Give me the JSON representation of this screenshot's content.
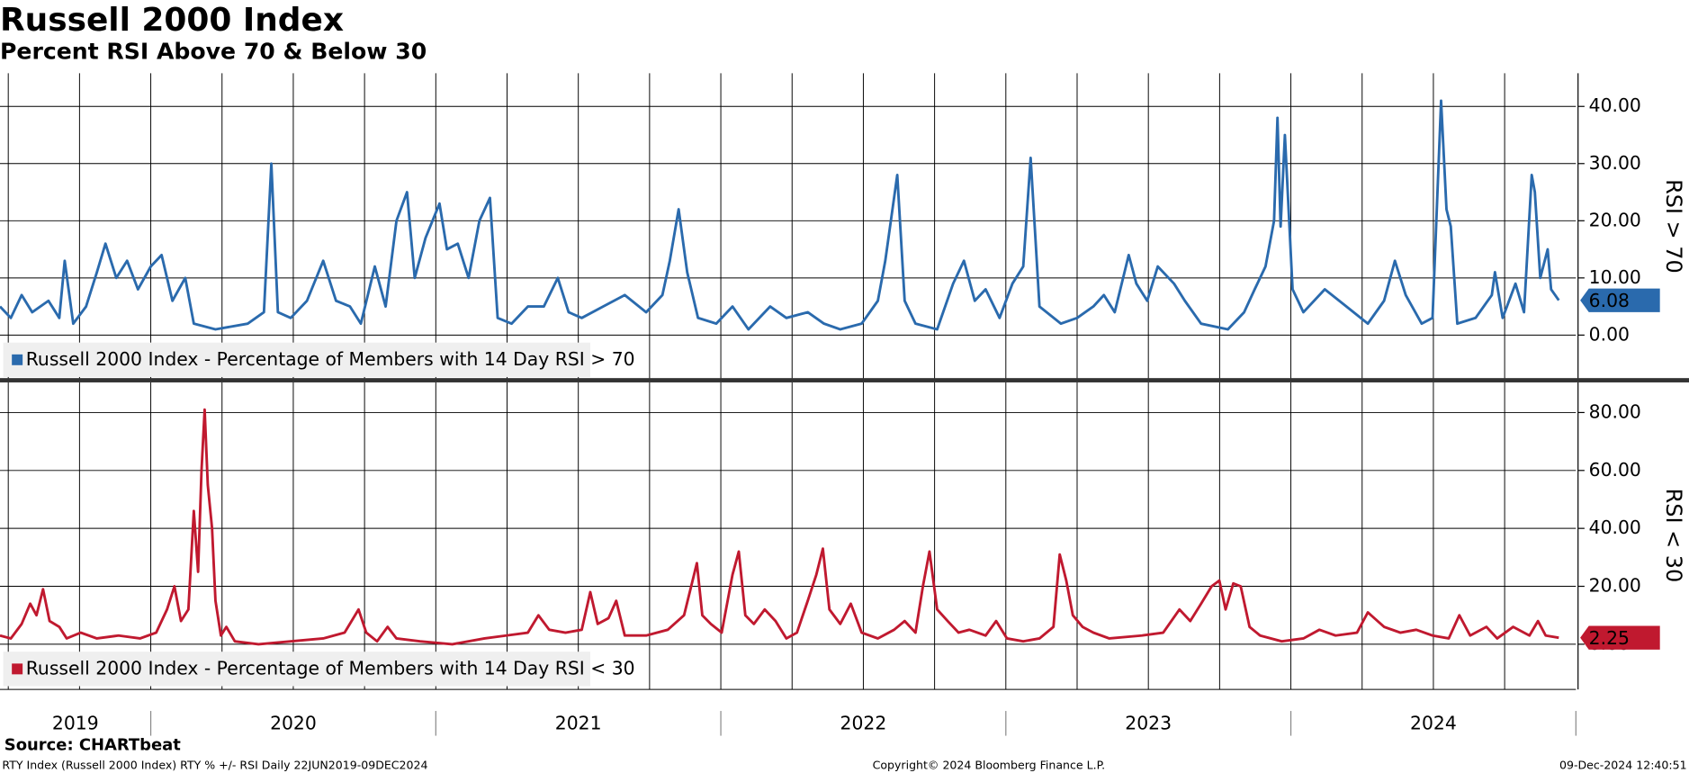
{
  "header": {
    "title": "Russell 2000 Index",
    "subtitle": "Percent RSI Above 70 & Below 30"
  },
  "footer": {
    "source": "Source: CHARTbeat",
    "description": "RTY Index (Russell 2000 Index) RTY % +/- RSI  Daily 22JUN2019-09DEC2024",
    "copyright": "Copyright© 2024 Bloomberg Finance L.P.",
    "timestamp": "09-Dec-2024 12:40:51"
  },
  "x_axis": {
    "years": [
      2019,
      2020,
      2021,
      2022,
      2023,
      2024
    ]
  },
  "chart_data": [
    {
      "type": "line",
      "y_axis_label": "RSI > 70",
      "xlim": [
        2019.471,
        2025.0
      ],
      "ylim": [
        -7.9,
        45.8
      ],
      "xgrid": [
        2019.5,
        2019.75,
        2020.0,
        2020.25,
        2020.5,
        2020.75,
        2021.0,
        2021.25,
        2021.5,
        2021.75,
        2022.0,
        2022.25,
        2022.5,
        2022.75,
        2023.0,
        2023.25,
        2023.5,
        2023.75,
        2024.0,
        2024.25,
        2024.5,
        2024.75
      ],
      "yticks": [
        {
          "value": 0,
          "label": "0.00"
        },
        {
          "value": 10,
          "label": "10.00"
        },
        {
          "value": 20,
          "label": "20.00"
        },
        {
          "value": 30,
          "label": "30.00"
        },
        {
          "value": 40,
          "label": "40.00"
        }
      ],
      "x": [
        2019.471,
        2019.509,
        2019.547,
        2019.584,
        2019.641,
        2019.679,
        2019.698,
        2019.728,
        2019.773,
        2019.811,
        2019.841,
        2019.879,
        2019.917,
        2019.955,
        2020.0,
        2020.038,
        2020.076,
        2020.121,
        2020.151,
        2020.227,
        2020.34,
        2020.397,
        2020.423,
        2020.446,
        2020.491,
        2020.548,
        2020.605,
        2020.65,
        2020.699,
        2020.737,
        2020.786,
        2020.824,
        2020.862,
        2020.899,
        2020.926,
        2020.964,
        2021.013,
        2021.039,
        2021.077,
        2021.115,
        2021.153,
        2021.19,
        2021.217,
        2021.266,
        2021.323,
        2021.379,
        2021.428,
        2021.466,
        2021.512,
        2021.587,
        2021.663,
        2021.738,
        2021.795,
        2021.821,
        2021.852,
        2021.882,
        2021.92,
        2021.984,
        2022.041,
        2022.097,
        2022.173,
        2022.23,
        2022.305,
        2022.362,
        2022.419,
        2022.494,
        2022.551,
        2022.577,
        2022.619,
        2022.645,
        2022.683,
        2022.759,
        2022.815,
        2022.853,
        2022.891,
        2022.929,
        2022.978,
        2023.023,
        2023.061,
        2023.087,
        2023.118,
        2023.193,
        2023.25,
        2023.307,
        2023.344,
        2023.382,
        2023.431,
        2023.458,
        2023.496,
        2023.533,
        2023.59,
        2023.628,
        2023.685,
        2023.779,
        2023.836,
        2023.873,
        2023.911,
        2023.941,
        2023.953,
        2023.964,
        2023.979,
        2024.006,
        2024.044,
        2024.119,
        2024.195,
        2024.27,
        2024.327,
        2024.365,
        2024.403,
        2024.459,
        2024.497,
        2024.527,
        2024.546,
        2024.561,
        2024.584,
        2024.648,
        2024.705,
        2024.716,
        2024.743,
        2024.788,
        2024.818,
        2024.845,
        2024.856,
        2024.875,
        2024.901,
        2024.913,
        2024.94
      ],
      "series": [
        {
          "name": "Russell 2000 Index - Percentage of Members with 14 Day RSI > 70",
          "color": "#2a6aad",
          "values": [
            5,
            3,
            7,
            4,
            6,
            3,
            13,
            2,
            5,
            11,
            16,
            10,
            13,
            8,
            12,
            14,
            6,
            10,
            2,
            1,
            2,
            4,
            30,
            4,
            3,
            6,
            13,
            6,
            5,
            2,
            12,
            5,
            20,
            25,
            10,
            17,
            23,
            15,
            16,
            10,
            20,
            24,
            3,
            2,
            5,
            5,
            10,
            4,
            3,
            5,
            7,
            4,
            7,
            13,
            22,
            11,
            3,
            2,
            5,
            1,
            5,
            3,
            4,
            2,
            1,
            2,
            6,
            13,
            28,
            6,
            2,
            1,
            9,
            13,
            6,
            8,
            3,
            9,
            12,
            31,
            5,
            2,
            3,
            5,
            7,
            4,
            14,
            9,
            6,
            12,
            9,
            6,
            2,
            1,
            4,
            8,
            12,
            20,
            38,
            19,
            35,
            8,
            4,
            8,
            5,
            2,
            6,
            13,
            7,
            2,
            3,
            41,
            22,
            19,
            2,
            3,
            7,
            11,
            3,
            9,
            4,
            28,
            25,
            10,
            15,
            8,
            6.08
          ]
        }
      ]
    },
    {
      "type": "line",
      "y_axis_label": "RSI < 30",
      "xlim": [
        2019.471,
        2025.0
      ],
      "ylim": [
        -15.6,
        90.4
      ],
      "xgrid": [
        2019.5,
        2019.75,
        2020.0,
        2020.25,
        2020.5,
        2020.75,
        2021.0,
        2021.25,
        2021.5,
        2021.75,
        2022.0,
        2022.25,
        2022.5,
        2022.75,
        2023.0,
        2023.25,
        2023.5,
        2023.75,
        2024.0,
        2024.25,
        2024.5,
        2024.75
      ],
      "yticks": [
        {
          "value": 0,
          "label": "0.00"
        },
        {
          "value": 20,
          "label": "20.00"
        },
        {
          "value": 40,
          "label": "40.00"
        },
        {
          "value": 60,
          "label": "60.00"
        },
        {
          "value": 80,
          "label": "80.00"
        }
      ],
      "x": [
        2019.471,
        2019.509,
        2019.547,
        2019.577,
        2019.599,
        2019.622,
        2019.645,
        2019.679,
        2019.705,
        2019.754,
        2019.811,
        2019.887,
        2019.962,
        2020.019,
        2020.057,
        2020.083,
        2020.106,
        2020.132,
        2020.151,
        2020.166,
        2020.178,
        2020.189,
        2020.2,
        2020.215,
        2020.227,
        2020.246,
        2020.265,
        2020.295,
        2020.378,
        2020.491,
        2020.605,
        2020.68,
        2020.729,
        2020.756,
        2020.794,
        2020.831,
        2020.862,
        2020.945,
        2021.058,
        2021.171,
        2021.247,
        2021.323,
        2021.36,
        2021.398,
        2021.455,
        2021.512,
        2021.542,
        2021.568,
        2021.606,
        2021.633,
        2021.663,
        2021.738,
        2021.814,
        2021.871,
        2021.916,
        2021.935,
        2021.965,
        2022.003,
        2022.041,
        2022.063,
        2022.086,
        2022.116,
        2022.154,
        2022.192,
        2022.23,
        2022.267,
        2022.305,
        2022.335,
        2022.358,
        2022.381,
        2022.419,
        2022.456,
        2022.494,
        2022.551,
        2022.608,
        2022.645,
        2022.683,
        2022.709,
        2022.732,
        2022.759,
        2022.796,
        2022.834,
        2022.872,
        2022.929,
        2022.966,
        2023.004,
        2023.061,
        2023.118,
        2023.167,
        2023.189,
        2023.212,
        2023.235,
        2023.269,
        2023.307,
        2023.363,
        2023.477,
        2023.552,
        2023.609,
        2023.647,
        2023.685,
        2023.722,
        2023.749,
        2023.771,
        2023.798,
        2023.824,
        2023.855,
        2023.892,
        2023.968,
        2024.044,
        2024.1,
        2024.157,
        2024.232,
        2024.27,
        2024.327,
        2024.384,
        2024.44,
        2024.497,
        2024.554,
        2024.591,
        2024.629,
        2024.686,
        2024.724,
        2024.78,
        2024.837,
        2024.867,
        2024.894,
        2024.94
      ],
      "series": [
        {
          "name": "Russell 2000 Index - Percentage of Members with 14 Day RSI < 30",
          "color": "#c0192f",
          "values": [
            3,
            2,
            7,
            14,
            10,
            19,
            8,
            6,
            2,
            4,
            2,
            3,
            2,
            4,
            12,
            20,
            8,
            12,
            46,
            25,
            60,
            81,
            55,
            40,
            15,
            3,
            6,
            1,
            0,
            1,
            2,
            4,
            12,
            4,
            1,
            6,
            2,
            1,
            0,
            2,
            3,
            4,
            10,
            5,
            4,
            5,
            18,
            7,
            9,
            15,
            3,
            3,
            5,
            10,
            28,
            10,
            7,
            4,
            24,
            32,
            10,
            7,
            12,
            8,
            2,
            4,
            15,
            24,
            33,
            12,
            7,
            14,
            4,
            2,
            5,
            8,
            4,
            20,
            32,
            12,
            8,
            4,
            5,
            3,
            8,
            2,
            1,
            2,
            6,
            31,
            22,
            10,
            6,
            4,
            2,
            3,
            4,
            12,
            8,
            14,
            20,
            22,
            12,
            21,
            20,
            6,
            3,
            1,
            2,
            5,
            3,
            4,
            11,
            6,
            4,
            5,
            3,
            2,
            10,
            3,
            6,
            2,
            6,
            3,
            8,
            3,
            2.25
          ]
        }
      ]
    }
  ]
}
